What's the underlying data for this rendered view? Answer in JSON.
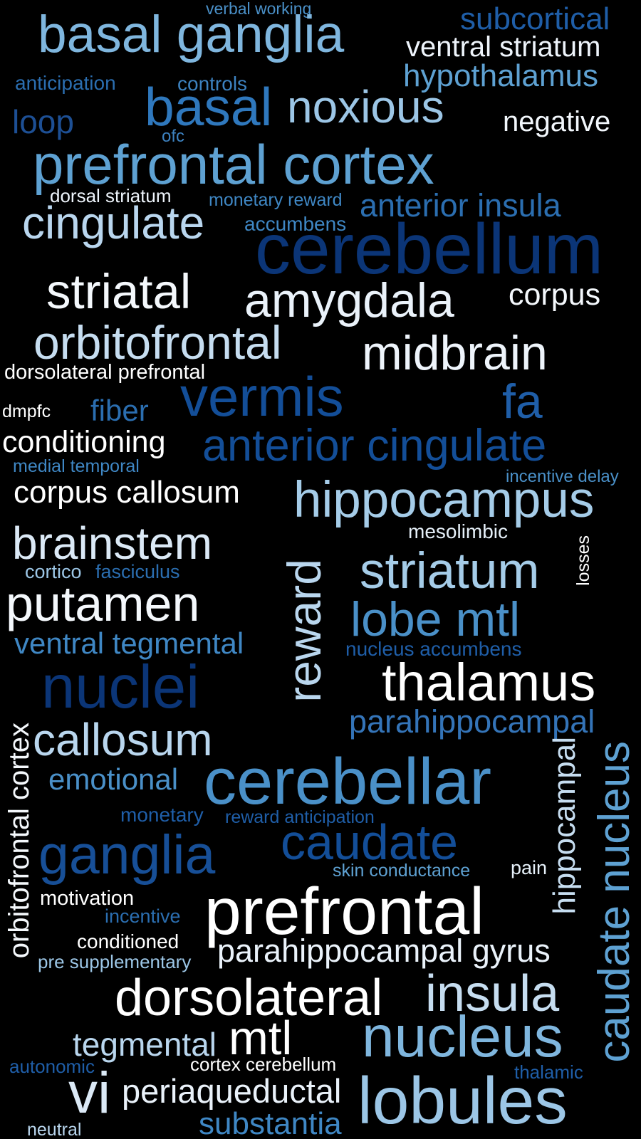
{
  "words": [
    {
      "text": "verbal working",
      "color": "#4a90c8"
    },
    {
      "text": "basal ganglia",
      "color": "#7fb6de"
    },
    {
      "text": "subcortical",
      "color": "#1f5ea8"
    },
    {
      "text": "ventral striatum",
      "color": "#eef4fb"
    },
    {
      "text": "hypothalamus",
      "color": "#5ea1d2"
    },
    {
      "text": "anticipation",
      "color": "#2b6eb0"
    },
    {
      "text": "controls",
      "color": "#3d82c0"
    },
    {
      "text": "basal",
      "color": "#2f78bd"
    },
    {
      "text": "noxious",
      "color": "#9cc6e6"
    },
    {
      "text": "loop",
      "color": "#1d4f94"
    },
    {
      "text": "negative",
      "color": "#f2f7fc"
    },
    {
      "text": "ofc",
      "color": "#3d82c0"
    },
    {
      "text": "prefrontal cortex",
      "color": "#5ea1d2"
    },
    {
      "text": "dorsal striatum",
      "color": "#eef4fb"
    },
    {
      "text": "monetary reward",
      "color": "#3f87c4"
    },
    {
      "text": "anterior insula",
      "color": "#2b6eb0"
    },
    {
      "text": "cingulate",
      "color": "#b9d6ee"
    },
    {
      "text": "accumbens",
      "color": "#3f87c4"
    },
    {
      "text": "cerebellum",
      "color": "#0b3577"
    },
    {
      "text": "striatal",
      "color": "#f4f8fc"
    },
    {
      "text": "amygdala",
      "color": "#eaf2fa"
    },
    {
      "text": "corpus",
      "color": "#f4f8fc"
    },
    {
      "text": "orbitofrontal",
      "color": "#c6ddf0"
    },
    {
      "text": "midbrain",
      "color": "#eef4fb"
    },
    {
      "text": "dorsolateral prefrontal",
      "color": "#ffffff"
    },
    {
      "text": "vermis",
      "color": "#134e98"
    },
    {
      "text": "fa",
      "color": "#1f5ea8"
    },
    {
      "text": "dmpfc",
      "color": "#ffffff"
    },
    {
      "text": "fiber",
      "color": "#2b6eb0"
    },
    {
      "text": "conditioning",
      "color": "#ffffff"
    },
    {
      "text": "anterior cingulate",
      "color": "#134e98"
    },
    {
      "text": "medial temporal",
      "color": "#3f87c4"
    },
    {
      "text": "incentive delay",
      "color": "#4a90c8"
    },
    {
      "text": "corpus callosum",
      "color": "#ffffff"
    },
    {
      "text": "hippocampus",
      "color": "#a5cce8"
    },
    {
      "text": "mesolimbic",
      "color": "#e6f0f9"
    },
    {
      "text": "brainstem",
      "color": "#dbe9f6"
    },
    {
      "text": "striatum",
      "color": "#a5cce8"
    },
    {
      "text": "losses",
      "color": "#ffffff"
    },
    {
      "text": "cortico",
      "color": "#9cc6e6"
    },
    {
      "text": "fasciculus",
      "color": "#2b6eb0"
    },
    {
      "text": "reward",
      "color": "#b9d6ee"
    },
    {
      "text": "putamen",
      "color": "#f4f8fc"
    },
    {
      "text": "lobe mtl",
      "color": "#4a90c8"
    },
    {
      "text": "ventral tegmental",
      "color": "#3f87c4"
    },
    {
      "text": "nucleus accumbens",
      "color": "#1f5ea8"
    },
    {
      "text": "nuclei",
      "color": "#0b3577"
    },
    {
      "text": "thalamus",
      "color": "#ffffff"
    },
    {
      "text": "orbitofrontal cortex",
      "color": "#f4f8fc"
    },
    {
      "text": "callosum",
      "color": "#b9d6ee"
    },
    {
      "text": "parahippocampal",
      "color": "#3474b8"
    },
    {
      "text": "emotional",
      "color": "#4a90c8"
    },
    {
      "text": "cerebellar",
      "color": "#4a90c8"
    },
    {
      "text": "hippocampal",
      "color": "#c6ddf0"
    },
    {
      "text": "caudate nucleus",
      "color": "#5ea1d2"
    },
    {
      "text": "monetary",
      "color": "#1f5ea8"
    },
    {
      "text": "reward anticipation",
      "color": "#1f5ea8"
    },
    {
      "text": "ganglia",
      "color": "#174f97"
    },
    {
      "text": "caudate",
      "color": "#134e98"
    },
    {
      "text": "skin conductance",
      "color": "#5ea1d2"
    },
    {
      "text": "pain",
      "color": "#e6f0f9"
    },
    {
      "text": "motivation",
      "color": "#ffffff"
    },
    {
      "text": "prefrontal",
      "color": "#ffffff"
    },
    {
      "text": "incentive",
      "color": "#2b6eb0"
    },
    {
      "text": "conditioned",
      "color": "#ffffff"
    },
    {
      "text": "pre supplementary",
      "color": "#9cc6e6"
    },
    {
      "text": "parahippocampal gyrus",
      "color": "#eaf2fa"
    },
    {
      "text": "dorsolateral",
      "color": "#ffffff"
    },
    {
      "text": "insula",
      "color": "#c6ddf0"
    },
    {
      "text": "tegmental",
      "color": "#b9d6ee"
    },
    {
      "text": "mtl",
      "color": "#ffffff"
    },
    {
      "text": "nucleus",
      "color": "#7fb6de"
    },
    {
      "text": "autonomic",
      "color": "#1f5ea8"
    },
    {
      "text": "cortex cerebellum",
      "color": "#ffffff"
    },
    {
      "text": "thalamic",
      "color": "#1f5ea8"
    },
    {
      "text": "vi",
      "color": "#dbe9f6"
    },
    {
      "text": "periaqueductal",
      "color": "#eaf2fa"
    },
    {
      "text": "lobules",
      "color": "#9cc6e6"
    },
    {
      "text": "substantia",
      "color": "#3f87c4"
    },
    {
      "text": "neutral",
      "color": "#b9d6ee"
    }
  ]
}
